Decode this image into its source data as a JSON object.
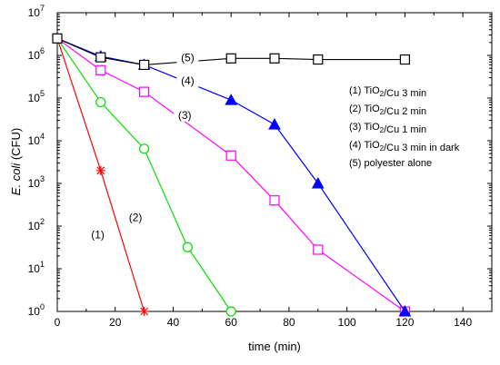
{
  "chart_data": {
    "type": "line",
    "title": "",
    "xlabel": "time (min)",
    "ylabel_italic": "E. coli",
    "ylabel_rest": " (CFU)",
    "xlim": [
      0,
      150
    ],
    "ylim": [
      1,
      10000000
    ],
    "yscale": "log",
    "x_ticks": [
      0,
      20,
      40,
      60,
      80,
      100,
      120,
      140
    ],
    "x_tick_labels": [
      "0",
      "20",
      "40",
      "60",
      "80",
      "100",
      "120",
      "140"
    ],
    "y_tick_labels": [
      {
        "base": "10",
        "exp": "0",
        "value": 1
      },
      {
        "base": "10",
        "exp": "1",
        "value": 10
      },
      {
        "base": "10",
        "exp": "2",
        "value": 100
      },
      {
        "base": "10",
        "exp": "3",
        "value": 1000
      },
      {
        "base": "10",
        "exp": "4",
        "value": 10000
      },
      {
        "base": "10",
        "exp": "5",
        "value": 100000
      },
      {
        "base": "10",
        "exp": "6",
        "value": 1000000
      },
      {
        "base": "10",
        "exp": "7",
        "value": 10000000
      }
    ],
    "grid": false,
    "legend_position": "right",
    "legend": [
      {
        "number": "(1)",
        "parts": [
          {
            "t": "TiO"
          },
          {
            "t": "2",
            "sub": true
          },
          {
            "t": "/Cu 3 min"
          }
        ]
      },
      {
        "number": "(2)",
        "parts": [
          {
            "t": "TiO"
          },
          {
            "t": "2",
            "sub": true
          },
          {
            "t": "/Cu 2 min"
          }
        ]
      },
      {
        "number": "(3)",
        "parts": [
          {
            "t": "TiO"
          },
          {
            "t": "2",
            "sub": true
          },
          {
            "t": "/Cu 1 min"
          }
        ]
      },
      {
        "number": "(4)",
        "parts": [
          {
            "t": "TiO"
          },
          {
            "t": "2",
            "sub": true
          },
          {
            "t": "/Cu 3 min in dark"
          }
        ]
      },
      {
        "number": "(5)",
        "parts": [
          {
            "t": "polyester alone"
          }
        ]
      }
    ],
    "series": [
      {
        "label": "(1)",
        "color": "#ff0000",
        "marker": "asterisk",
        "x": [
          0,
          15,
          30
        ],
        "y": [
          2500000,
          2000,
          1
        ],
        "annotation": {
          "text": "(1)",
          "x": 14,
          "y": 60
        }
      },
      {
        "label": "(2)",
        "color": "#00e000",
        "marker": "open-circle",
        "x": [
          0,
          15,
          30,
          45,
          60
        ],
        "y": [
          2500000,
          80000,
          6500,
          32,
          1
        ],
        "annotation": {
          "text": "(2)",
          "x": 27,
          "y": 150
        }
      },
      {
        "label": "(3)",
        "color": "#ff00ff",
        "marker": "open-square",
        "x": [
          0,
          15,
          30,
          60,
          75,
          90,
          120
        ],
        "y": [
          2500000,
          450000,
          140000,
          4500,
          400,
          28,
          1
        ],
        "annotation": {
          "text": "(3)",
          "x": 44,
          "y": 38000
        }
      },
      {
        "label": "(4)",
        "color": "#0000ff",
        "marker": "filled-triangle",
        "x": [
          0,
          15,
          30,
          60,
          75,
          90,
          120
        ],
        "y": [
          2500000,
          950000,
          600000,
          90000,
          24000,
          1000,
          1
        ],
        "annotation": {
          "text": "(4)",
          "x": 45,
          "y": 240000
        }
      },
      {
        "label": "(5)",
        "color": "#000000",
        "marker": "open-square",
        "x": [
          0,
          15,
          30,
          60,
          75,
          90,
          120
        ],
        "y": [
          2500000,
          900000,
          600000,
          850000,
          850000,
          800000,
          800000
        ],
        "annotation": {
          "text": "(5)",
          "x": 45,
          "y": 850000
        }
      }
    ]
  }
}
